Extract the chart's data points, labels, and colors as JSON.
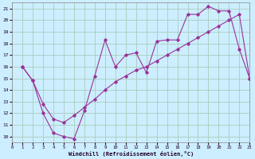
{
  "xlabel": "Windchill (Refroidissement éolien,°C)",
  "background_color": "#cceeff",
  "grid_color": "#aaccbb",
  "line_color": "#993399",
  "xlim": [
    0,
    23
  ],
  "ylim": [
    9.5,
    21.5
  ],
  "xticks": [
    0,
    1,
    2,
    3,
    4,
    5,
    6,
    7,
    8,
    9,
    10,
    11,
    12,
    13,
    14,
    15,
    16,
    17,
    18,
    19,
    20,
    21,
    22,
    23
  ],
  "yticks": [
    10,
    11,
    12,
    13,
    14,
    15,
    16,
    17,
    18,
    19,
    20,
    21
  ],
  "line1_x": [
    1,
    2,
    3,
    4,
    5,
    6,
    7,
    8,
    9,
    10,
    11,
    12,
    13,
    14,
    15,
    16,
    17,
    18,
    19,
    20,
    21,
    22,
    23
  ],
  "line1_y": [
    16.0,
    14.8,
    12.0,
    10.3,
    10.0,
    9.8,
    12.2,
    15.2,
    18.3,
    16.0,
    17.0,
    17.2,
    15.5,
    18.2,
    18.3,
    18.3,
    20.5,
    20.5,
    21.2,
    20.8,
    20.8,
    17.5,
    15.0
  ],
  "line2_x": [
    1,
    2,
    3,
    4,
    5,
    6,
    7,
    8,
    9,
    10,
    11,
    12,
    13,
    14,
    15,
    16,
    17,
    18,
    19,
    20,
    21,
    22,
    23
  ],
  "line2_y": [
    16.0,
    14.8,
    12.8,
    11.5,
    11.2,
    11.8,
    12.5,
    13.2,
    14.0,
    14.7,
    15.2,
    15.7,
    16.0,
    16.5,
    17.0,
    17.5,
    18.0,
    18.5,
    19.0,
    19.5,
    20.0,
    20.5,
    15.0
  ]
}
